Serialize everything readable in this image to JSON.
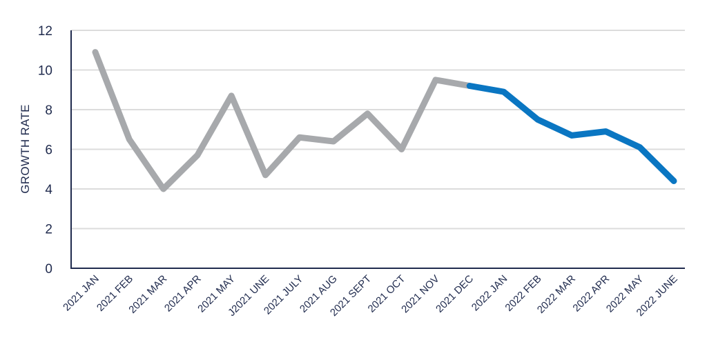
{
  "chart_data": {
    "type": "line",
    "ylabel": "GROWTH RATE",
    "xlabel": "",
    "ylim": [
      0,
      12
    ],
    "yticks": [
      0,
      2,
      4,
      6,
      8,
      10,
      12
    ],
    "grid": true,
    "categories": [
      "2021 JAN",
      "2021 FEB",
      "2021 MAR",
      "2021 APR",
      "2021 MAY",
      "J2021 UNE",
      "2021 JULY",
      "2021 AUG",
      "2021 SEPT",
      "2021 OCT",
      "2021 NOV",
      "2021 DEC",
      "2022 JAN",
      "2022 FEB",
      "2022 MAR",
      "2022 APR",
      "2022 MAY",
      "2022 JUNE"
    ],
    "series": [
      {
        "color": "#a7a9ac",
        "values": [
          10.9,
          6.5,
          4.0,
          5.7,
          8.7,
          4.7,
          6.6,
          6.4,
          7.8,
          6.0,
          9.5,
          9.2,
          null,
          null,
          null,
          null,
          null,
          null
        ]
      },
      {
        "color": "#0a76c2",
        "values": [
          null,
          null,
          null,
          null,
          null,
          null,
          null,
          null,
          null,
          null,
          null,
          9.2,
          8.9,
          7.5,
          6.7,
          6.9,
          6.1,
          4.4
        ]
      }
    ],
    "colors": {
      "axis": "#1f2a4d",
      "grid": "#dcdcdc",
      "text": "#1f2a4d"
    }
  }
}
